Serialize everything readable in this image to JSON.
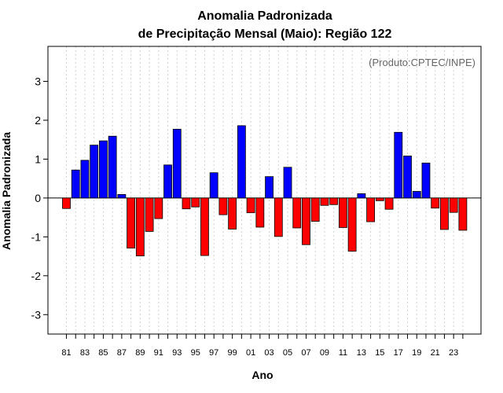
{
  "chart_data": {
    "type": "bar",
    "title": "Anomalia Padronizada",
    "subtitle": "de Precipitação Mensal (Maio): Região 122",
    "xlabel": "Ano",
    "ylabel": "Anomalia Padronizada",
    "credit": "(Produto:CPTEC/INPE)",
    "ylim": [
      -3.5,
      3.9
    ],
    "yticks": [
      -3,
      -2,
      -1,
      0,
      1,
      2,
      3
    ],
    "grid": true,
    "positive_color": "#0000ff",
    "negative_color": "#ff0000",
    "categories": [
      "81",
      "82",
      "83",
      "84",
      "85",
      "86",
      "87",
      "88",
      "89",
      "90",
      "91",
      "92",
      "93",
      "94",
      "95",
      "96",
      "97",
      "98",
      "99",
      "00",
      "01",
      "02",
      "03",
      "04",
      "05",
      "06",
      "07",
      "08",
      "09",
      "10",
      "11",
      "12",
      "13",
      "14",
      "15",
      "16",
      "17",
      "18",
      "19",
      "20",
      "21",
      "22",
      "23",
      "24"
    ],
    "xtick_labels": [
      "81",
      "83",
      "85",
      "87",
      "89",
      "91",
      "93",
      "95",
      "97",
      "99",
      "01",
      "03",
      "05",
      "07",
      "09",
      "11",
      "13",
      "15",
      "17",
      "19",
      "21",
      "23"
    ],
    "values": [
      -0.27,
      0.72,
      0.97,
      1.36,
      1.47,
      1.59,
      0.09,
      -1.29,
      -1.49,
      -0.86,
      -0.53,
      0.85,
      1.77,
      -0.28,
      -0.23,
      -1.48,
      0.65,
      -0.43,
      -0.8,
      1.86,
      -0.38,
      -0.75,
      0.55,
      -0.99,
      0.79,
      -0.77,
      -1.2,
      -0.6,
      -0.19,
      -0.17,
      -0.76,
      -1.37,
      0.11,
      -0.61,
      -0.07,
      -0.29,
      1.69,
      1.08,
      0.17,
      0.9,
      -0.26,
      -0.81,
      -0.37,
      -0.83
    ]
  }
}
